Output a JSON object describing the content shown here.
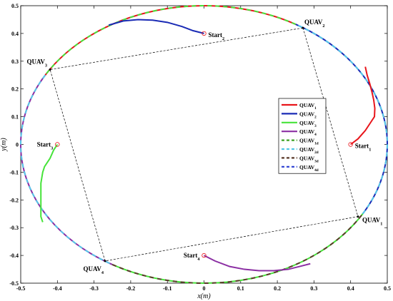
{
  "chart_data": {
    "type": "line",
    "xlabel": "x(m)",
    "ylabel": "y(m)",
    "xlim": [
      -0.5,
      0.5
    ],
    "ylim": [
      -0.5,
      0.5
    ],
    "x_ticks": [
      "-0.5",
      "-0.4",
      "-0.3",
      "-0.2",
      "-0.1",
      "0",
      "0.1",
      "0.2",
      "0.3",
      "0.4",
      "0.5"
    ],
    "y_ticks": [
      "0.5",
      "0.4",
      "0.3",
      "0.2",
      "0.1",
      "0",
      "-0.1",
      "-0.2",
      "-0.3",
      "-0.4",
      "-0.5"
    ],
    "legend_position": "right",
    "reference_circle": {
      "center": [
        0,
        0
      ],
      "radius": 0.5
    },
    "series": [
      {
        "name": "QUAV",
        "sub": "1",
        "style": "solid",
        "color": "#e8151b",
        "points": [
          [
            0.4,
            0
          ],
          [
            0.42,
            0.02
          ],
          [
            0.44,
            0.05
          ],
          [
            0.455,
            0.08
          ],
          [
            0.465,
            0.1
          ],
          [
            0.466,
            0.13
          ],
          [
            0.463,
            0.16
          ],
          [
            0.458,
            0.19
          ],
          [
            0.452,
            0.22
          ],
          [
            0.445,
            0.25
          ],
          [
            0.44,
            0.28
          ]
        ]
      },
      {
        "name": "QUAV",
        "sub": "2",
        "style": "solid",
        "color": "#1a2bb5",
        "points": [
          [
            0,
            0.4
          ],
          [
            -0.03,
            0.41
          ],
          [
            -0.06,
            0.425
          ],
          [
            -0.1,
            0.44
          ],
          [
            -0.14,
            0.448
          ],
          [
            -0.18,
            0.45
          ],
          [
            -0.22,
            0.445
          ],
          [
            -0.26,
            0.43
          ]
        ]
      },
      {
        "name": "QUAV",
        "sub": "3",
        "style": "solid",
        "color": "#46e33a",
        "points": [
          [
            -0.4,
            0
          ],
          [
            -0.41,
            -0.02
          ],
          [
            -0.42,
            -0.05
          ],
          [
            -0.435,
            -0.08
          ],
          [
            -0.44,
            -0.1
          ],
          [
            -0.445,
            -0.14
          ],
          [
            -0.445,
            -0.18
          ],
          [
            -0.445,
            -0.22
          ],
          [
            -0.445,
            -0.26
          ],
          [
            -0.44,
            -0.28
          ]
        ]
      },
      {
        "name": "QUAV",
        "sub": "4",
        "style": "solid",
        "color": "#8b2fa3",
        "points": [
          [
            0,
            -0.4
          ],
          [
            0.03,
            -0.42
          ],
          [
            0.07,
            -0.44
          ],
          [
            0.11,
            -0.45
          ],
          [
            0.15,
            -0.455
          ],
          [
            0.19,
            -0.455
          ],
          [
            0.23,
            -0.45
          ],
          [
            0.26,
            -0.44
          ],
          [
            0.29,
            -0.43
          ]
        ]
      },
      {
        "name": "QUAV",
        "sub": "1d",
        "style": "dashed",
        "color": "#3fa324"
      },
      {
        "name": "QUAV",
        "sub": "2d",
        "style": "dashed",
        "color": "#55c7e8"
      },
      {
        "name": "QUAV",
        "sub": "3d",
        "style": "dashed",
        "color": "#5a3a2a"
      },
      {
        "name": "QUAV",
        "sub": "4d",
        "style": "dashed",
        "color": "#2b3fd1"
      }
    ],
    "formation_vertices": [
      {
        "name": "QUAV",
        "sub": "1",
        "x": 0.42,
        "y": -0.26,
        "label_pos": "right"
      },
      {
        "name": "QUAV",
        "sub": "2",
        "x": 0.27,
        "y": 0.42,
        "label_pos": "above-right"
      },
      {
        "name": "QUAV",
        "sub": "3",
        "x": -0.42,
        "y": 0.27,
        "label_pos": "left"
      },
      {
        "name": "QUAV",
        "sub": "4",
        "x": -0.27,
        "y": -0.42,
        "label_pos": "below-left"
      }
    ],
    "start_points": [
      {
        "name": "Start",
        "sub": "1",
        "x": 0.4,
        "y": 0,
        "label_pos": "right"
      },
      {
        "name": "Start",
        "sub": "2",
        "x": 0,
        "y": 0.4,
        "label_pos": "right"
      },
      {
        "name": "Start",
        "sub": "3",
        "x": -0.4,
        "y": 0,
        "label_pos": "left"
      },
      {
        "name": "Start",
        "sub": "4",
        "x": 0,
        "y": -0.4,
        "label_pos": "left"
      }
    ]
  }
}
